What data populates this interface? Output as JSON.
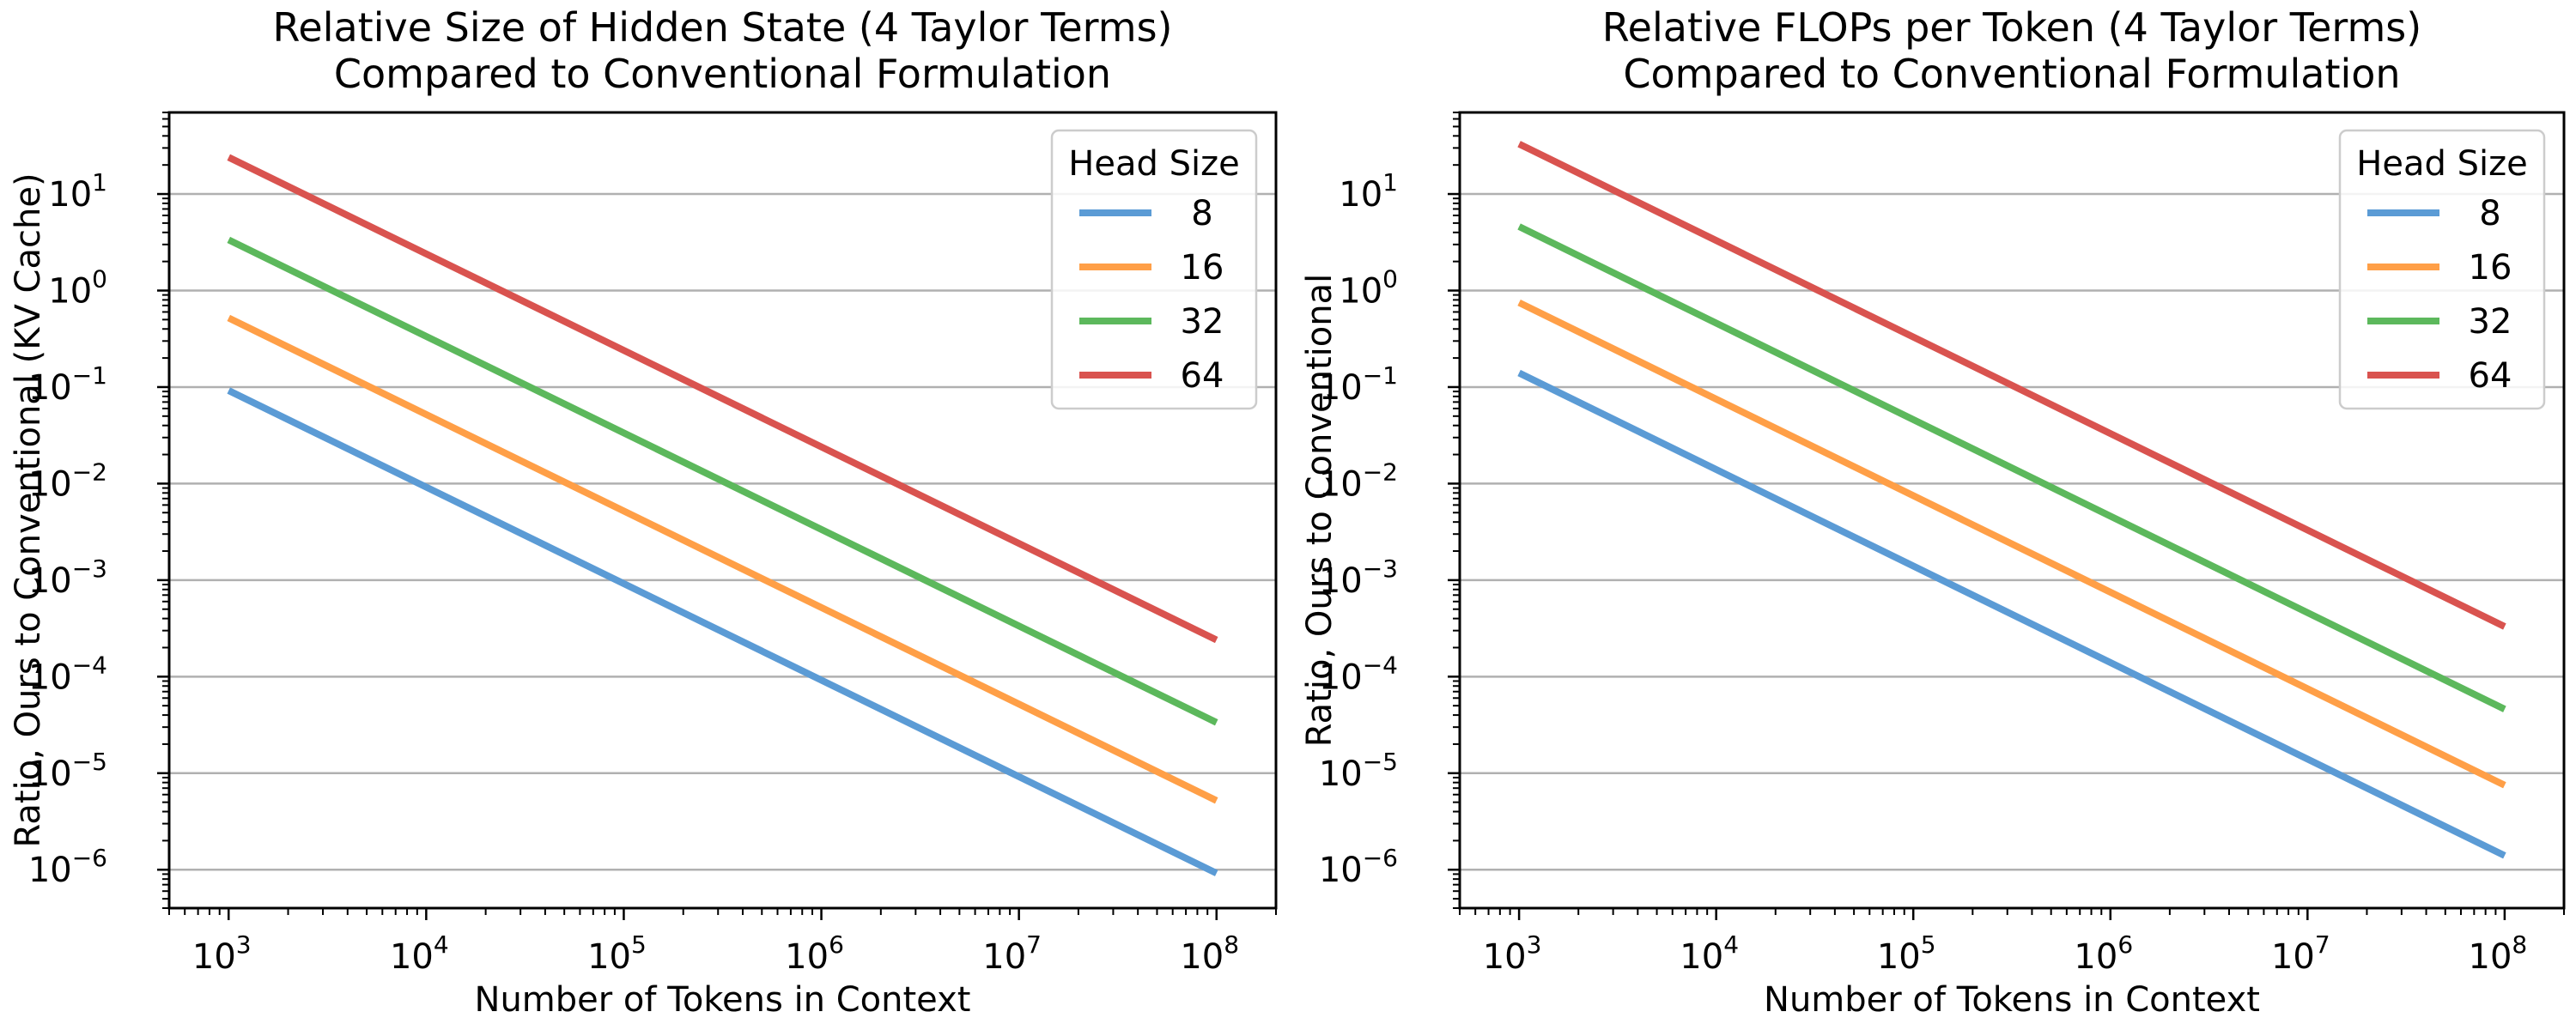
{
  "chart_data": [
    {
      "type": "line",
      "title": [
        "Relative Size of Hidden State (4 Taylor Terms)",
        "Compared to Conventional Formulation"
      ],
      "xlabel": "Number of Tokens in Context",
      "ylabel": "Ratio, Ours to Conventional (KV Cache)",
      "xscale": "log",
      "yscale": "log",
      "xlim": [
        500,
        200000000
      ],
      "ylim": [
        4e-07,
        70
      ],
      "x": [
        1000,
        100000000
      ],
      "xticks": [
        {
          "base": "10",
          "exp": "3"
        },
        {
          "base": "10",
          "exp": "4"
        },
        {
          "base": "10",
          "exp": "5"
        },
        {
          "base": "10",
          "exp": "6"
        },
        {
          "base": "10",
          "exp": "7"
        },
        {
          "base": "10",
          "exp": "8"
        }
      ],
      "yticks": [
        {
          "base": "10",
          "exp": "1"
        },
        {
          "base": "10",
          "exp": "0"
        },
        {
          "base": "10",
          "exp": "−1"
        },
        {
          "base": "10",
          "exp": "−2"
        },
        {
          "base": "10",
          "exp": "−3"
        },
        {
          "base": "10",
          "exp": "−4"
        },
        {
          "base": "10",
          "exp": "−5"
        },
        {
          "base": "10",
          "exp": "−6"
        }
      ],
      "grid": "horizontal",
      "legend_title": "Head Size",
      "legend_position": "top-right",
      "series": [
        {
          "name": "8",
          "color": "#5b9bd5",
          "values": [
            0.092,
            9.2e-07
          ]
        },
        {
          "name": "16",
          "color": "#ff9f47",
          "values": [
            0.52,
            5.2e-06
          ]
        },
        {
          "name": "32",
          "color": "#5cb85c",
          "values": [
            3.35,
            3.35e-05
          ]
        },
        {
          "name": "64",
          "color": "#d9534f",
          "values": [
            24,
            0.00024
          ]
        }
      ]
    },
    {
      "type": "line",
      "title": [
        "Relative FLOPs per Token (4 Taylor Terms)",
        "Compared to Conventional Formulation"
      ],
      "xlabel": "Number of Tokens in Context",
      "ylabel": "Ratio, Ours to Conventional",
      "xscale": "log",
      "yscale": "log",
      "xlim": [
        500,
        200000000
      ],
      "ylim": [
        4e-07,
        70
      ],
      "x": [
        1000,
        100000000
      ],
      "xticks": [
        {
          "base": "10",
          "exp": "3"
        },
        {
          "base": "10",
          "exp": "4"
        },
        {
          "base": "10",
          "exp": "5"
        },
        {
          "base": "10",
          "exp": "6"
        },
        {
          "base": "10",
          "exp": "7"
        },
        {
          "base": "10",
          "exp": "8"
        }
      ],
      "yticks": [
        {
          "base": "10",
          "exp": "1"
        },
        {
          "base": "10",
          "exp": "0"
        },
        {
          "base": "10",
          "exp": "−1"
        },
        {
          "base": "10",
          "exp": "−2"
        },
        {
          "base": "10",
          "exp": "−3"
        },
        {
          "base": "10",
          "exp": "−4"
        },
        {
          "base": "10",
          "exp": "−5"
        },
        {
          "base": "10",
          "exp": "−6"
        }
      ],
      "grid": "horizontal",
      "legend_title": "Head Size",
      "legend_position": "top-right",
      "series": [
        {
          "name": "8",
          "color": "#5b9bd5",
          "values": [
            0.14,
            1.4e-06
          ]
        },
        {
          "name": "16",
          "color": "#ff9f47",
          "values": [
            0.75,
            7.5e-06
          ]
        },
        {
          "name": "32",
          "color": "#5cb85c",
          "values": [
            4.6,
            4.6e-05
          ]
        },
        {
          "name": "64",
          "color": "#d9534f",
          "values": [
            33,
            0.00033
          ]
        }
      ]
    }
  ]
}
